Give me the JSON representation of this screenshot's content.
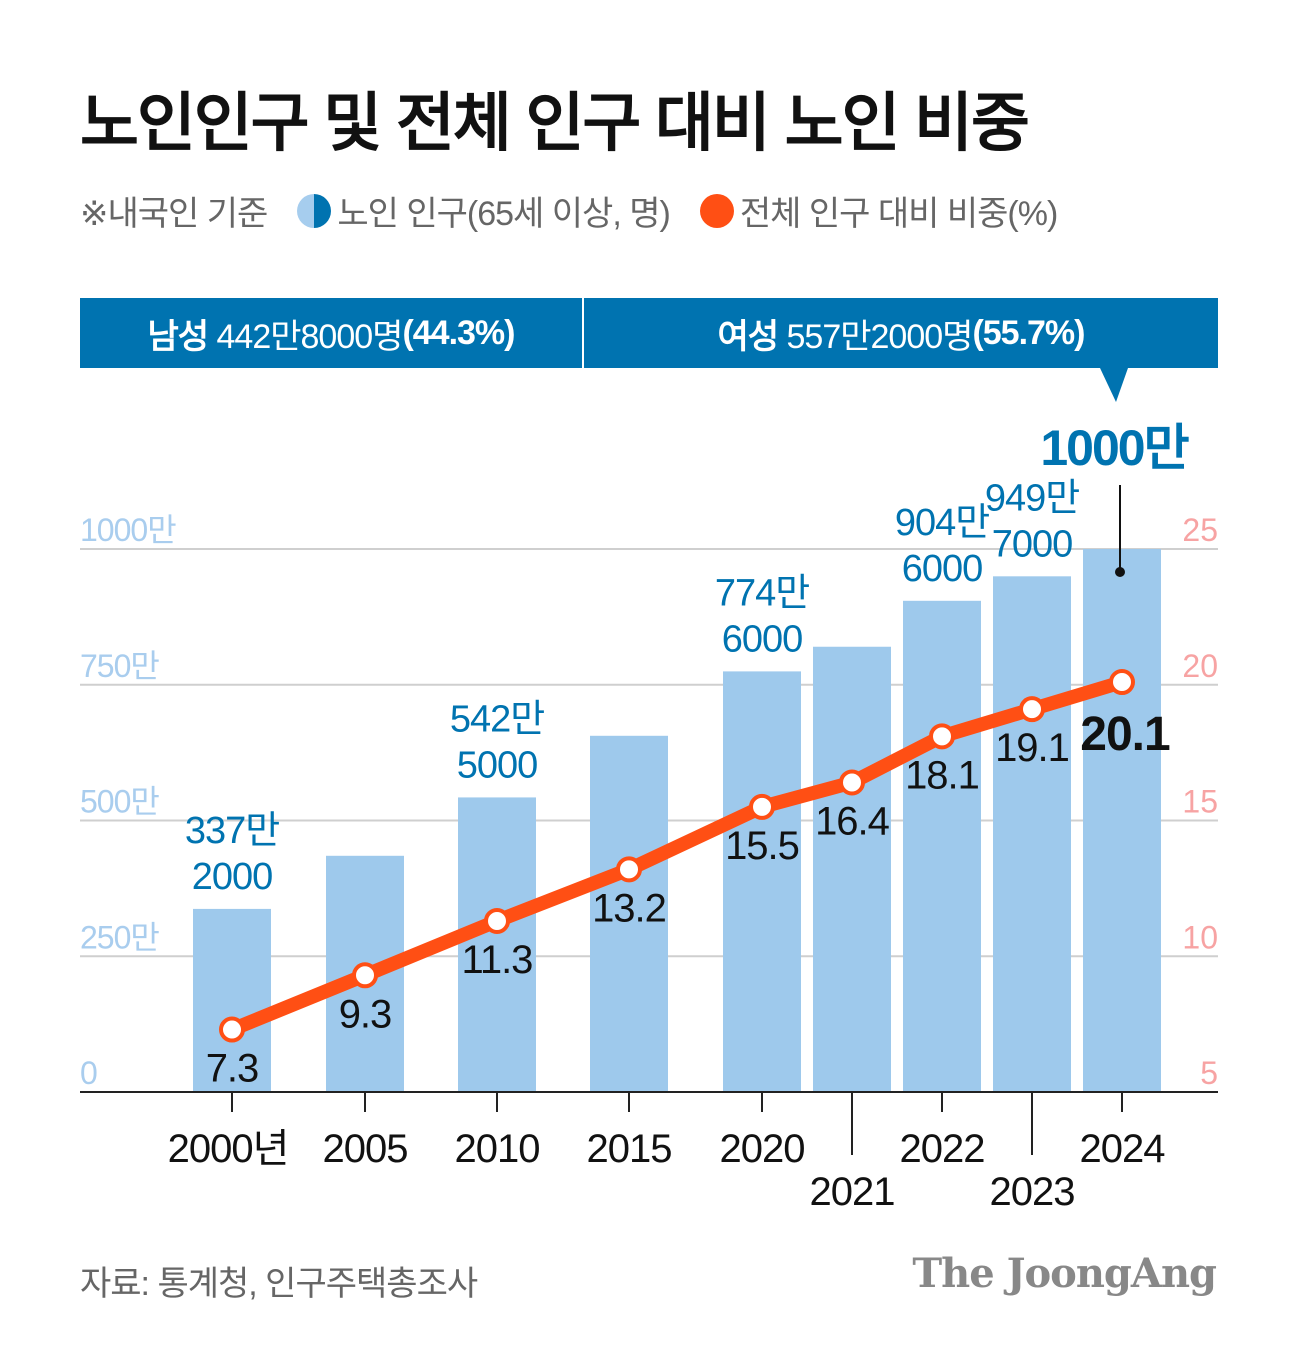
{
  "title": "노인인구 및 전체 인구 대비 노인 비중",
  "legend": {
    "note": "※내국인 기준",
    "items": [
      {
        "label": "노인 인구(65세 이상, 명)",
        "icon": "half-circle-blue-icon",
        "color": "#0073b0"
      },
      {
        "label": "전체 인구 대비 비중(%)",
        "icon": "circle-orange-icon",
        "color": "#ff4f14"
      }
    ]
  },
  "banner": {
    "male": {
      "label": "남성",
      "value": "442만8000명",
      "pct": "(44.3%)"
    },
    "female": {
      "label": "여성",
      "value": "557만2000명",
      "pct": "(55.7%)"
    }
  },
  "source": "자료: 통계청, 인구주택총조사",
  "logo": "The JoongAng",
  "chart_data": {
    "type": "bar+line",
    "categories": [
      "2000년",
      "2005",
      "2010",
      "2015",
      "2020",
      "2021",
      "2022",
      "2023",
      "2024"
    ],
    "series": [
      {
        "name": "노인 인구(65세 이상, 명)",
        "type": "bar",
        "axis": "left",
        "unit": "만",
        "values": [
          337.2,
          435,
          542.5,
          656,
          774.6,
          820,
          904.6,
          949.7,
          1000
        ],
        "labels": [
          [
            "337만",
            "2000"
          ],
          null,
          [
            "542만",
            "5000"
          ],
          null,
          [
            "774만",
            "6000"
          ],
          null,
          [
            "904만",
            "6000"
          ],
          [
            "949만",
            "7000"
          ],
          null
        ]
      },
      {
        "name": "전체 인구 대비 비중(%)",
        "type": "line",
        "axis": "right",
        "values": [
          7.3,
          9.3,
          11.3,
          13.2,
          15.5,
          16.4,
          18.1,
          19.1,
          20.1
        ],
        "labels": [
          "7.3",
          "9.3",
          "11.3",
          "13.2",
          "15.5",
          "16.4",
          "18.1",
          "19.1",
          "20.1"
        ]
      }
    ],
    "left_axis": {
      "ticks": [
        "0",
        "250만",
        "500만",
        "750만",
        "1000만"
      ],
      "values": [
        0,
        250,
        500,
        750,
        1000
      ],
      "ylim": [
        0,
        1000
      ]
    },
    "right_axis": {
      "ticks": [
        "5",
        "10",
        "15",
        "20",
        "25"
      ],
      "values": [
        5,
        10,
        15,
        20,
        25
      ],
      "ylim": [
        5,
        25
      ]
    },
    "annotation": "1000만",
    "grid": true,
    "colors": {
      "bar": "#9ec9ec",
      "bar_label": "#0073b0",
      "line": "#ff4f14",
      "left_axis": "#a9cdee",
      "right_axis": "#f7a3a3"
    }
  }
}
